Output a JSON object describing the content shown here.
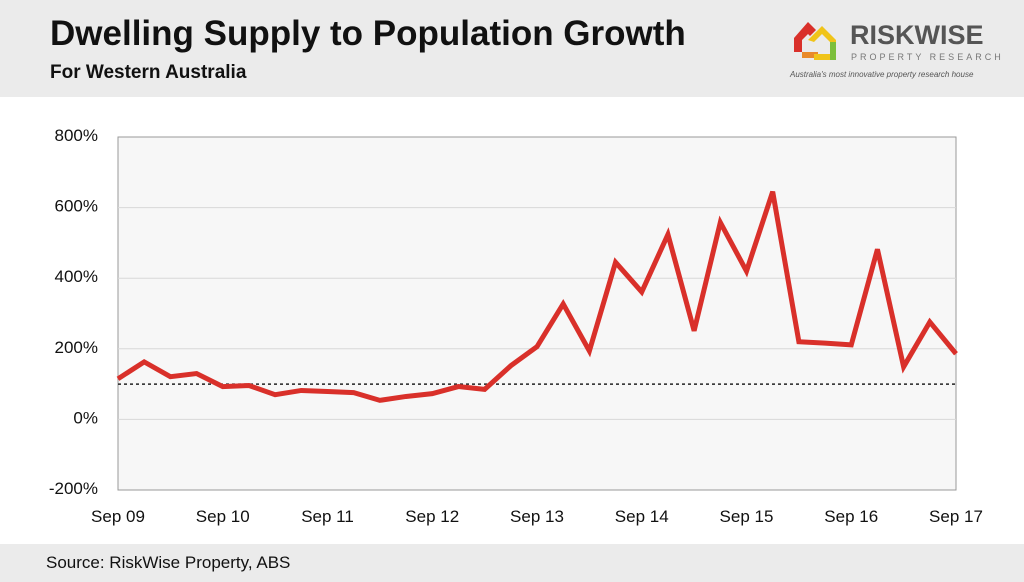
{
  "header": {
    "title": "Dwelling Supply to Population Growth",
    "subtitle": "For Western Australia"
  },
  "logo": {
    "name": "RISKWISE",
    "sub": "PROPERTY RESEARCH",
    "tagline": "Australia's most innovative property research house"
  },
  "footer": {
    "source": "Source: RiskWise Property, ABS"
  },
  "chart_data": {
    "type": "line",
    "title": "Dwelling Supply to Population Growth",
    "ylim": [
      -200,
      800
    ],
    "yticks": [
      -200,
      0,
      200,
      400,
      600,
      800
    ],
    "ytick_labels": [
      "-200%",
      "0%",
      "200%",
      "400%",
      "600%",
      "800%"
    ],
    "xtick_labels": [
      "Sep 09",
      "Sep 10",
      "Sep 11",
      "Sep 12",
      "Sep 13",
      "Sep 14",
      "Sep 15",
      "Sep 16",
      "Sep 17"
    ],
    "reference_line": 100,
    "grid": true,
    "color": "#d9302a",
    "series": [
      {
        "name": "Dwelling supply to population growth",
        "values": [
          115,
          163,
          121,
          130,
          93,
          96,
          70,
          82,
          79,
          76,
          54,
          65,
          73,
          93,
          85,
          152,
          206,
          327,
          194,
          445,
          361,
          524,
          251,
          558,
          420,
          645,
          220,
          216,
          211,
          482,
          149,
          276,
          186
        ]
      }
    ]
  }
}
